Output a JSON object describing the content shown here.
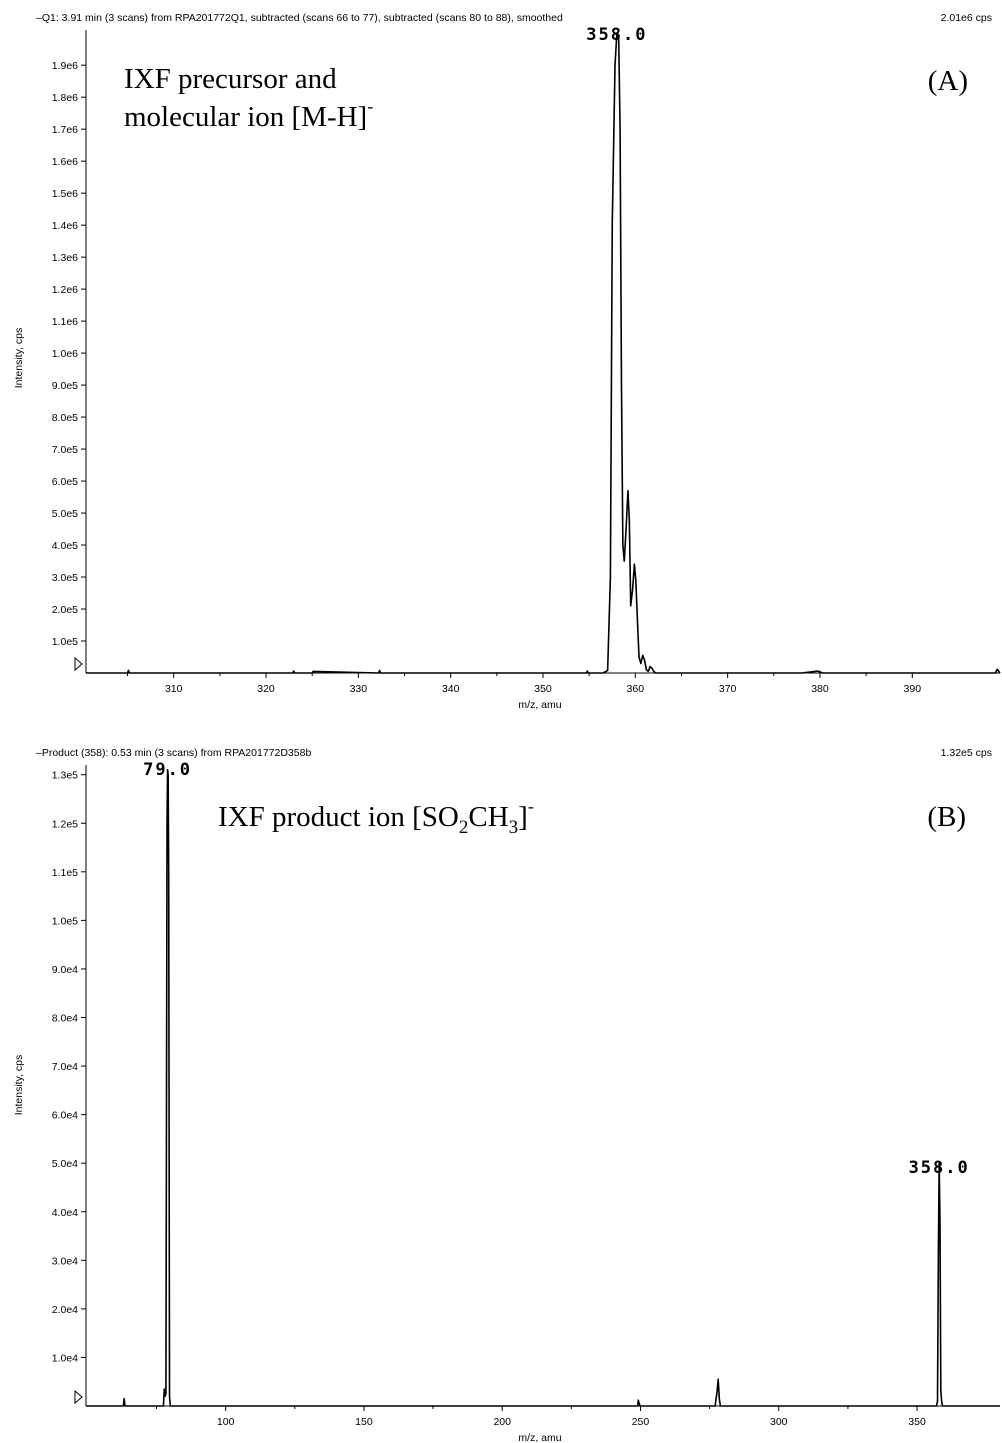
{
  "chart_data": [
    {
      "type": "line",
      "header_left": "–Q1: 3.91 min (3 scans) from RPA201772Q1, subtracted (scans 66 to 77), subtracted (scans 80 to 88), smoothed",
      "header_right": "2.01e6 cps",
      "xlabel": "m/z, amu",
      "ylabel": "Intensity, cps",
      "annotation_line1": "IXF precursor and",
      "annotation_line2": "molecular ion [M-H]",
      "annotation_sup": "-",
      "panel_label": "(A)",
      "xlim": [
        300.5,
        399.5
      ],
      "ylim": [
        0,
        2010000
      ],
      "x_ticks": [
        310,
        320,
        330,
        340,
        350,
        360,
        370,
        380,
        390
      ],
      "x_tick_labels": [
        "310",
        "320",
        "330",
        "340",
        "350",
        "360",
        "370",
        "380",
        "390"
      ],
      "y_ticks": [
        100000,
        200000,
        300000,
        400000,
        500000,
        600000,
        700000,
        800000,
        900000,
        1000000,
        1100000,
        1200000,
        1300000,
        1400000,
        1500000,
        1600000,
        1700000,
        1800000,
        1900000
      ],
      "y_tick_labels": [
        "1.0e5",
        "2.0e5",
        "3.0e5",
        "4.0e5",
        "5.0e5",
        "6.0e5",
        "7.0e5",
        "8.0e5",
        "9.0e5",
        "1.0e6",
        "1.1e6",
        "1.2e6",
        "1.3e6",
        "1.4e6",
        "1.5e6",
        "1.6e6",
        "1.7e6",
        "1.8e6",
        "1.9e6"
      ],
      "peak_labels": [
        {
          "text": "358.0",
          "x": 358.0,
          "y": 2010000
        }
      ],
      "series": [
        {
          "x": [
            300.5,
            305,
            305.1,
            305.2,
            320,
            322.9,
            323,
            323.1,
            325,
            325.1,
            332.2,
            332.3,
            332.4,
            350,
            354.7,
            354.8,
            354.9,
            356.5,
            357.0,
            357.3,
            357.5,
            357.8,
            358.0,
            358.2,
            358.35,
            358.5,
            358.65,
            358.8,
            359.0,
            359.2,
            359.35,
            359.5,
            359.7,
            359.9,
            360.05,
            360.25,
            360.4,
            360.6,
            360.8,
            361.0,
            361.2,
            361.4,
            361.6,
            361.8,
            362.0,
            362.2,
            362.5,
            370,
            378,
            379.8,
            380.3,
            385,
            390,
            395,
            398,
            399.0,
            399.2,
            399.5
          ],
          "y": [
            0,
            0,
            8000,
            0,
            0,
            0,
            6000,
            0,
            0,
            5000,
            0,
            8000,
            0,
            0,
            0,
            6000,
            0,
            0,
            8000,
            300000,
            1400000,
            1900000,
            2000000,
            1980000,
            1700000,
            900000,
            400000,
            350000,
            450000,
            570000,
            480000,
            210000,
            260000,
            340000,
            290000,
            150000,
            50000,
            30000,
            55000,
            40000,
            10000,
            5000,
            20000,
            15000,
            5000,
            0,
            0,
            0,
            0,
            6000,
            0,
            0,
            0,
            0,
            0,
            0,
            12000,
            0
          ]
        }
      ]
    },
    {
      "type": "line",
      "header_left": "–Product (358): 0.53 min (3 scans) from RPA201772D358b",
      "header_right": "1.32e5 cps",
      "xlabel": "m/z, amu",
      "ylabel": "Intensity, cps",
      "annotation_main": "IXF product ion [SO",
      "annotation_sub1": "2",
      "annotation_mid": "CH",
      "annotation_sub2": "3",
      "annotation_end": "]",
      "annotation_sup": "-",
      "panel_label": "(B)",
      "xlim": [
        49.5,
        380
      ],
      "ylim": [
        0,
        132000
      ],
      "x_ticks": [
        100,
        150,
        200,
        250,
        300,
        350
      ],
      "x_tick_labels": [
        "100",
        "150",
        "200",
        "250",
        "300",
        "350"
      ],
      "y_ticks": [
        10000,
        20000,
        30000,
        40000,
        50000,
        60000,
        70000,
        80000,
        90000,
        100000,
        110000,
        120000,
        130000
      ],
      "y_tick_labels": [
        "1.0e4",
        "2.0e4",
        "3.0e4",
        "4.0e4",
        "5.0e4",
        "6.0e4",
        "7.0e4",
        "8.0e4",
        "9.0e4",
        "1.0e5",
        "1.1e5",
        "1.2e5",
        "1.3e5"
      ],
      "peak_labels": [
        {
          "text": "79.0",
          "x": 79.0,
          "y": 132000
        },
        {
          "text": "358.0",
          "x": 358.0,
          "y": 50000
        }
      ],
      "series": [
        {
          "x": [
            49.5,
            63,
            63.3,
            63.6,
            77.5,
            77.8,
            78.1,
            78.4,
            78.6,
            78.8,
            79.0,
            79.2,
            79.4,
            79.7,
            80,
            249,
            249.2,
            249.5,
            249.8,
            277,
            277.7,
            278.1,
            278.5,
            278.9,
            279.3,
            357.0,
            357.4,
            357.7,
            358.0,
            358.3,
            358.6,
            358.9,
            359.2,
            380
          ],
          "y": [
            0,
            0,
            1500,
            0,
            0,
            3500,
            2000,
            2500,
            60000,
            120000,
            131000,
            130000,
            110000,
            2000,
            0,
            0,
            1200,
            600,
            0,
            0,
            3000,
            5500,
            1500,
            0,
            0,
            0,
            1000,
            30000,
            50000,
            38000,
            3000,
            1000,
            0,
            0
          ]
        }
      ]
    }
  ]
}
